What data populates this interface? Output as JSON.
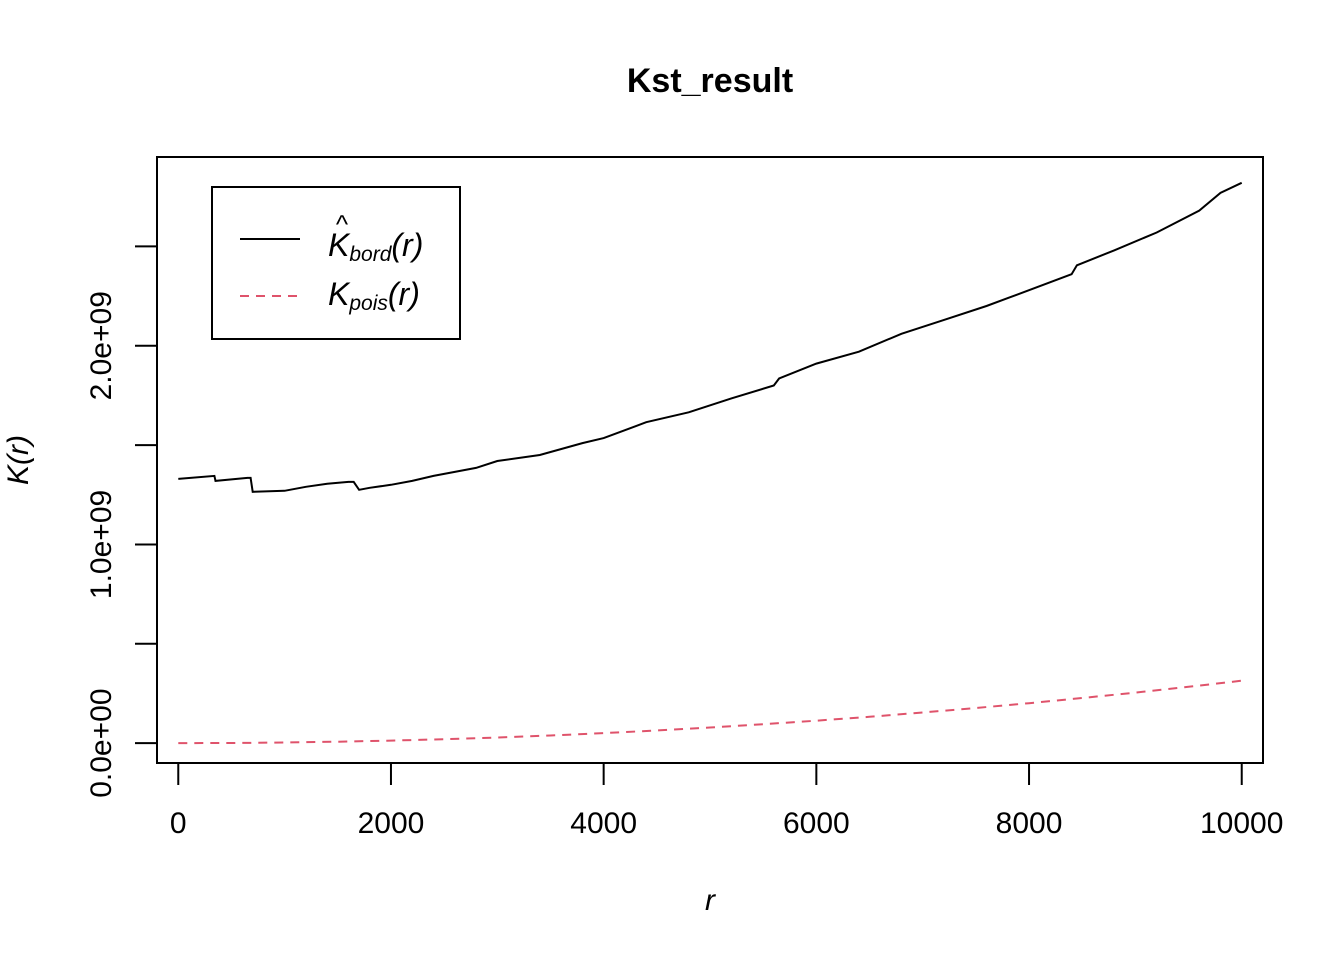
{
  "chart_data": {
    "type": "line",
    "title": "Kst_result",
    "xlabel": "r",
    "ylabel": "K(r)",
    "xlim": [
      -200,
      10200
    ],
    "ylim": [
      -100000000,
      2950000000
    ],
    "x_ticks": [
      0,
      2000,
      4000,
      6000,
      8000,
      10000
    ],
    "x_tick_labels": [
      "0",
      "2000",
      "4000",
      "6000",
      "8000",
      "10000"
    ],
    "y_ticks": [
      0,
      500000000,
      1000000000,
      1500000000,
      2000000000,
      2500000000
    ],
    "y_tick_labels": [
      "0.0e+00",
      "",
      "1.0e+09",
      "",
      "2.0e+09",
      ""
    ],
    "legend": {
      "position": "top-left",
      "entries": [
        {
          "main": "K",
          "hat": "^",
          "sub": "bord",
          "arg": "(r)",
          "color": "#000000",
          "dash": "solid"
        },
        {
          "main": "K",
          "hat": "",
          "sub": "pois",
          "arg": "(r)",
          "color": "#DF536B",
          "dash": "dashed"
        }
      ]
    },
    "series": [
      {
        "key": "bord",
        "color": "#000000",
        "dash": "solid",
        "x": [
          0,
          340,
          350,
          650,
          680,
          700,
          1000,
          1200,
          1400,
          1600,
          1650,
          1700,
          1800,
          2000,
          2200,
          2400,
          2600,
          2800,
          3000,
          3400,
          3800,
          4000,
          4200,
          4400,
          4800,
          5200,
          5600,
          5650,
          6000,
          6400,
          6800,
          7200,
          7600,
          7800,
          8200,
          8400,
          8450,
          8800,
          9200,
          9600,
          9800,
          10000
        ],
        "y": [
          1330000000,
          1345000000,
          1320000000,
          1335000000,
          1335000000,
          1265000000,
          1270000000,
          1290000000,
          1305000000,
          1315000000,
          1315000000,
          1275000000,
          1285000000,
          1300000000,
          1320000000,
          1345000000,
          1365000000,
          1385000000,
          1420000000,
          1450000000,
          1510000000,
          1535000000,
          1575000000,
          1615000000,
          1665000000,
          1735000000,
          1800000000,
          1835000000,
          1910000000,
          1970000000,
          2060000000,
          2130000000,
          2200000000,
          2240000000,
          2320000000,
          2360000000,
          2405000000,
          2480000000,
          2570000000,
          2680000000,
          2770000000,
          2820000000
        ]
      },
      {
        "key": "pois",
        "color": "#DF536B",
        "dash": "dashed",
        "x": [
          0,
          500,
          1000,
          1500,
          2000,
          2500,
          3000,
          3500,
          4000,
          4500,
          5000,
          5500,
          6000,
          6500,
          7000,
          7500,
          8000,
          8500,
          9000,
          9500,
          10000
        ],
        "y": [
          0,
          785000,
          3140000,
          7070000,
          12570000,
          19630000,
          28270000,
          38480000,
          50270000,
          63620000,
          78540000,
          95030000,
          113100000,
          132730000,
          153940000,
          176710000,
          201060000,
          226980000,
          254470000,
          283530000,
          314160000
        ]
      }
    ]
  }
}
